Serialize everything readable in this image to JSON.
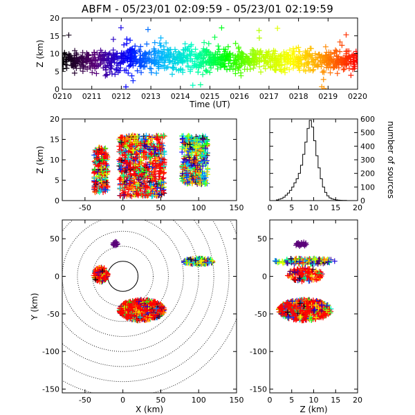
{
  "title": "ABFM - 05/23/01 02:09:59 - 05/23/01 02:19:59",
  "chart_data": [
    {
      "id": "time_height",
      "type": "scatter",
      "xlabel": "Time (UT)",
      "ylabel": "Z (km)",
      "xticks": [
        "0210",
        "0211",
        "0212",
        "0213",
        "0214",
        "0215",
        "0216",
        "0217",
        "0218",
        "0219",
        "0220"
      ],
      "xlim": [
        0,
        10
      ],
      "ylim": [
        0,
        20
      ],
      "yticks": [
        0,
        5,
        10,
        15,
        20
      ],
      "marker": "+",
      "color_by": "time",
      "colormap": [
        "#000000",
        "#5a0078",
        "#0000ff",
        "#00b4ff",
        "#00ffbe",
        "#00ff00",
        "#b4ff00",
        "#ffff00",
        "#ff8c00",
        "#ff0000"
      ],
      "approx_series": [
        {
          "minute": 0,
          "z_mean": 8.0,
          "z_spread": 2.5
        },
        {
          "minute": 1,
          "z_mean": 8.0,
          "z_spread": 3.5
        },
        {
          "minute": 2,
          "z_mean": 8.5,
          "z_spread": 4.0
        },
        {
          "minute": 3,
          "z_mean": 8.5,
          "z_spread": 4.0
        },
        {
          "minute": 4,
          "z_mean": 8.5,
          "z_spread": 4.0
        },
        {
          "minute": 5,
          "z_mean": 8.5,
          "z_spread": 3.5
        },
        {
          "minute": 6,
          "z_mean": 8.0,
          "z_spread": 3.5
        },
        {
          "minute": 7,
          "z_mean": 8.0,
          "z_spread": 3.5
        },
        {
          "minute": 8,
          "z_mean": 8.0,
          "z_spread": 3.5
        },
        {
          "minute": 9,
          "z_mean": 8.0,
          "z_spread": 3.5
        }
      ]
    },
    {
      "id": "x_height",
      "type": "scatter",
      "xlabel": "",
      "ylabel": "Z (km)",
      "xlim": [
        -80,
        150
      ],
      "xticks": [
        -50,
        0,
        50,
        100,
        150
      ],
      "ylim": [
        0,
        20
      ],
      "yticks": [
        0,
        5,
        10,
        15,
        20
      ],
      "marker": "+",
      "clusters": [
        {
          "x_min": -38,
          "x_max": -20,
          "z_min": 2,
          "z_max": 13
        },
        {
          "x_min": -5,
          "x_max": 55,
          "z_min": 1,
          "z_max": 16
        },
        {
          "x_min": 78,
          "x_max": 112,
          "z_min": 4,
          "z_max": 16
        }
      ]
    },
    {
      "id": "height_histogram",
      "type": "bar",
      "xlabel": "",
      "ylabel": "number of sources",
      "xlim": [
        0,
        20
      ],
      "xticks": [
        0,
        5,
        10,
        15,
        20
      ],
      "ylim": [
        0,
        600
      ],
      "yticks": [
        0,
        100,
        200,
        300,
        400,
        500,
        600
      ],
      "bin_width": 0.5,
      "bin_start": 0,
      "values": [
        0,
        0,
        0,
        5,
        10,
        15,
        25,
        40,
        55,
        75,
        100,
        130,
        160,
        200,
        260,
        340,
        430,
        530,
        590,
        540,
        440,
        330,
        240,
        160,
        100,
        60,
        35,
        20,
        12,
        8,
        5,
        3,
        2,
        1,
        1,
        0,
        0,
        0,
        0,
        0
      ]
    },
    {
      "id": "plan_view",
      "type": "scatter",
      "xlabel": "X (km)",
      "ylabel": "Y (km)",
      "xlim": [
        -80,
        150
      ],
      "xticks": [
        -50,
        0,
        50,
        100,
        150
      ],
      "ylim": [
        -155,
        75
      ],
      "yticks": [
        -150,
        -100,
        -50,
        0,
        50
      ],
      "marker": "+",
      "range_rings_km": [
        20,
        40,
        60,
        80,
        100,
        120,
        140,
        160
      ],
      "center": [
        0,
        0
      ],
      "clusters": [
        {
          "x_center": -29,
          "y_center": 2,
          "x_radius": 10,
          "y_radius": 10
        },
        {
          "x_center": 25,
          "y_center": -45,
          "x_radius": 30,
          "y_radius": 14
        },
        {
          "x_center": 100,
          "y_center": 20,
          "x_radius": 20,
          "y_radius": 4
        },
        {
          "x_center": -10,
          "y_center": 43,
          "x_radius": 3,
          "y_radius": 3
        }
      ]
    },
    {
      "id": "height_y",
      "type": "scatter",
      "xlabel": "Z (km)",
      "ylabel": "",
      "xlim": [
        0,
        20
      ],
      "xticks": [
        0,
        5,
        10,
        15,
        20
      ],
      "ylim": [
        -155,
        75
      ],
      "yticks": [
        -150,
        -100,
        -50,
        0,
        50
      ],
      "marker": "+",
      "clusters": [
        {
          "z_center": 8,
          "y_center": 2,
          "z_radius": 4,
          "y_radius": 9
        },
        {
          "z_center": 8,
          "y_center": -45,
          "z_radius": 6,
          "y_radius": 14
        },
        {
          "z_center": 8,
          "y_center": 20,
          "z_radius": 7,
          "y_radius": 4
        },
        {
          "z_center": 7,
          "y_center": 43,
          "z_radius": 1.5,
          "y_radius": 3
        }
      ]
    }
  ]
}
